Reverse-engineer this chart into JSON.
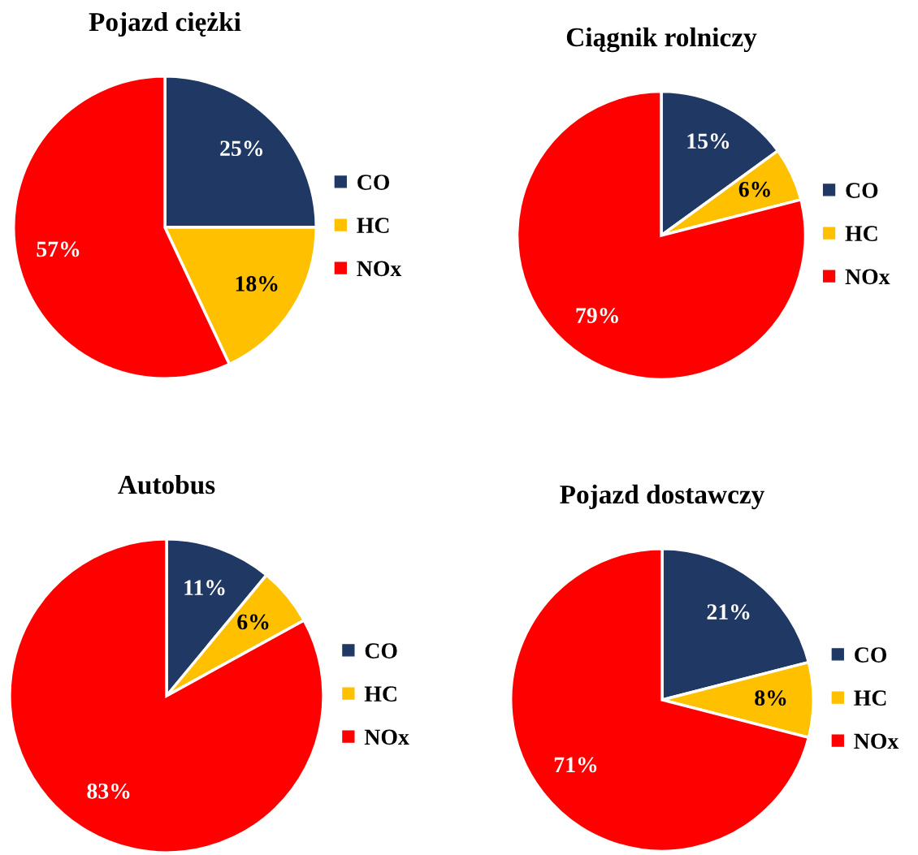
{
  "chart_data": [
    {
      "type": "pie",
      "title": "Pojazd ciężki",
      "categories": [
        "CO",
        "HC",
        "NOx"
      ],
      "values": [
        25,
        18,
        57
      ],
      "value_labels": [
        "25%",
        "18%",
        "57%"
      ],
      "colors": [
        "#1f3864",
        "#ffc000",
        "#ff0000"
      ],
      "legend": "right"
    },
    {
      "type": "pie",
      "title": "Ciągnik rolniczy",
      "categories": [
        "CO",
        "HC",
        "NOx"
      ],
      "values": [
        15,
        6,
        79
      ],
      "value_labels": [
        "15%",
        "6%",
        "79%"
      ],
      "colors": [
        "#1f3864",
        "#ffc000",
        "#ff0000"
      ],
      "legend": "right"
    },
    {
      "type": "pie",
      "title": "Autobus",
      "categories": [
        "CO",
        "HC",
        "NOx"
      ],
      "values": [
        11,
        6,
        83
      ],
      "value_labels": [
        "11%",
        "6%",
        "83%"
      ],
      "colors": [
        "#1f3864",
        "#ffc000",
        "#ff0000"
      ],
      "legend": "right"
    },
    {
      "type": "pie",
      "title": "Pojazd dostawczy",
      "categories": [
        "CO",
        "HC",
        "NOx"
      ],
      "values": [
        21,
        8,
        71
      ],
      "value_labels": [
        "21%",
        "8%",
        "71%"
      ],
      "colors": [
        "#1f3864",
        "#ffc000",
        "#ff0000"
      ],
      "legend": "right"
    }
  ]
}
